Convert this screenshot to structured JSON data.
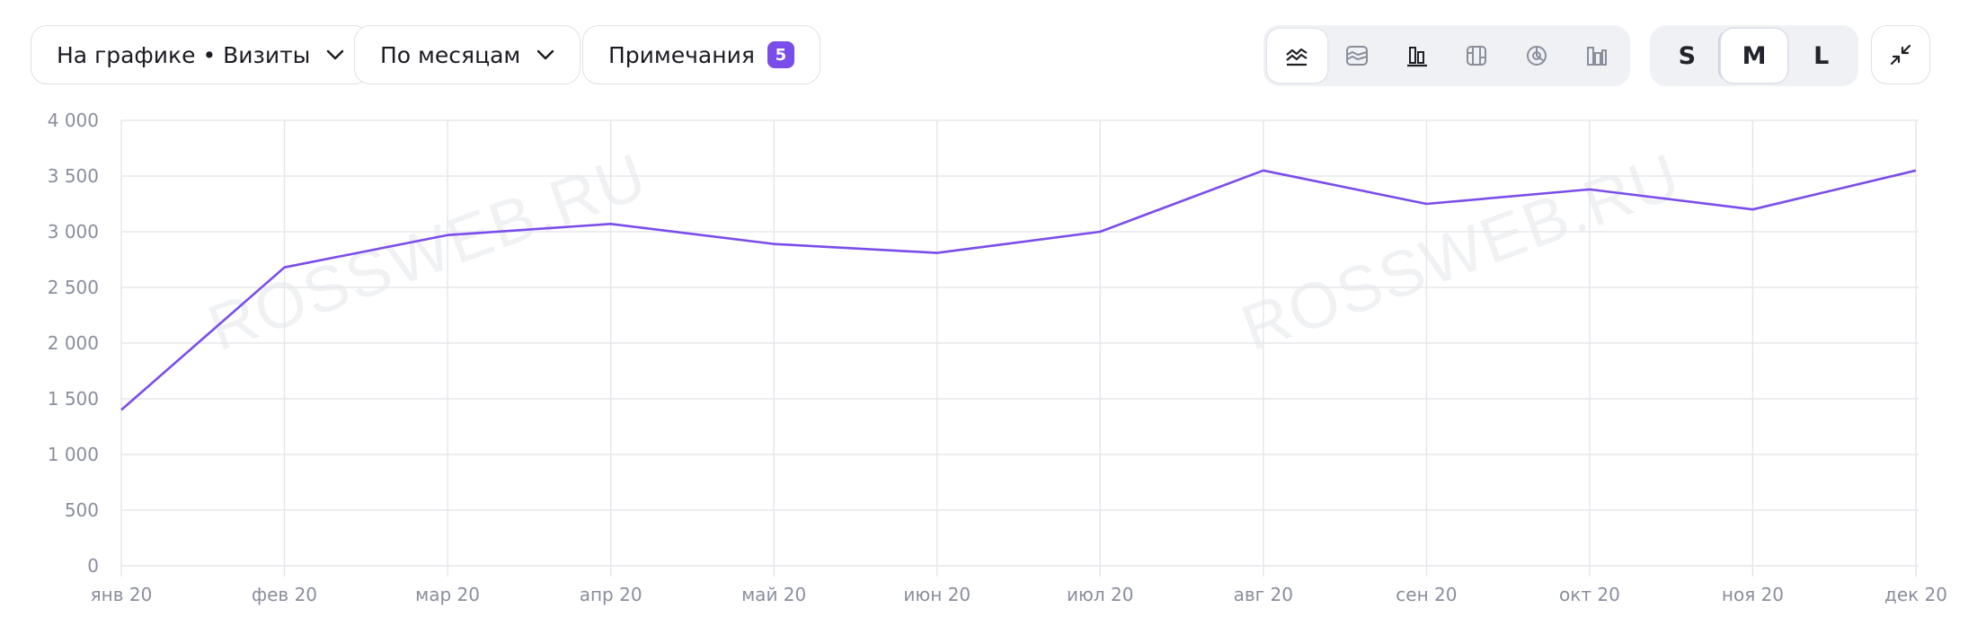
{
  "toolbar": {
    "metric_dropdown": "На графике • Визиты",
    "period_dropdown": "По месяцам",
    "notes_button": "Примечания",
    "notes_count": "5",
    "chart_types": [
      {
        "icon": "line-chart-icon",
        "active": true
      },
      {
        "icon": "area-chart-icon",
        "active": false
      },
      {
        "icon": "bar-chart-icon",
        "active": false
      },
      {
        "icon": "stacked-bar-icon",
        "active": false
      },
      {
        "icon": "pie-chart-icon",
        "active": false
      },
      {
        "icon": "column-chart-icon",
        "active": false
      }
    ],
    "sizes": [
      {
        "label": "S",
        "active": false
      },
      {
        "label": "M",
        "active": true
      },
      {
        "label": "L",
        "active": false
      }
    ],
    "collapse_icon": "collapse-icon"
  },
  "watermarks": [
    "ROSSWEB.RU",
    "ROSSWEB.RU"
  ],
  "colors": {
    "line": "#7a4dea",
    "grid": "#e6e7eb",
    "tick": "#8a8e9c",
    "accent": "#7a4dea"
  },
  "chart_data": {
    "type": "line",
    "categories": [
      "янв 20",
      "фев 20",
      "мар 20",
      "апр 20",
      "май 20",
      "июн 20",
      "июл 20",
      "авг 20",
      "сен 20",
      "окт 20",
      "ноя 20",
      "дек 20"
    ],
    "series": [
      {
        "values": [
          1400,
          2680,
          2970,
          3070,
          2890,
          2810,
          3000,
          3550,
          3250,
          3380,
          3200,
          3550
        ]
      }
    ],
    "yticks": [
      "0",
      "500",
      "1 000",
      "1 500",
      "2 000",
      "2 500",
      "3 000",
      "3 500",
      "4 000"
    ],
    "ylim": [
      0,
      4000
    ],
    "grid": true
  }
}
